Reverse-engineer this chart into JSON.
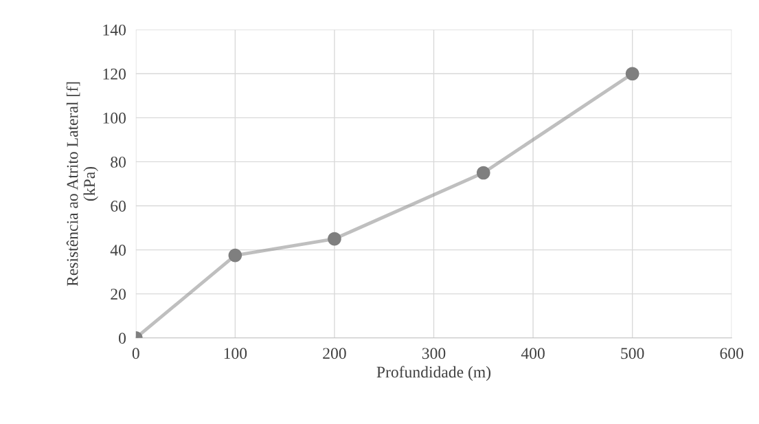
{
  "chart_data": {
    "type": "line",
    "xlabel": "Profundidade (m)",
    "ylabel": "Resistência ao Atrito Lateral [f]\n(kPa)",
    "x": [
      0,
      100,
      200,
      350,
      500
    ],
    "series": [
      {
        "color": "#7f7f7f",
        "values": [
          0,
          37.5,
          45,
          75,
          120
        ]
      }
    ],
    "xlim": [
      0,
      600
    ],
    "xticks": [
      0,
      100,
      200,
      300,
      400,
      500,
      600
    ],
    "ylim": [
      0,
      140
    ],
    "yticks": [
      0,
      20,
      40,
      60,
      80,
      100,
      120,
      140
    ],
    "grid": true,
    "marker": "circle",
    "line_style": "solid"
  }
}
